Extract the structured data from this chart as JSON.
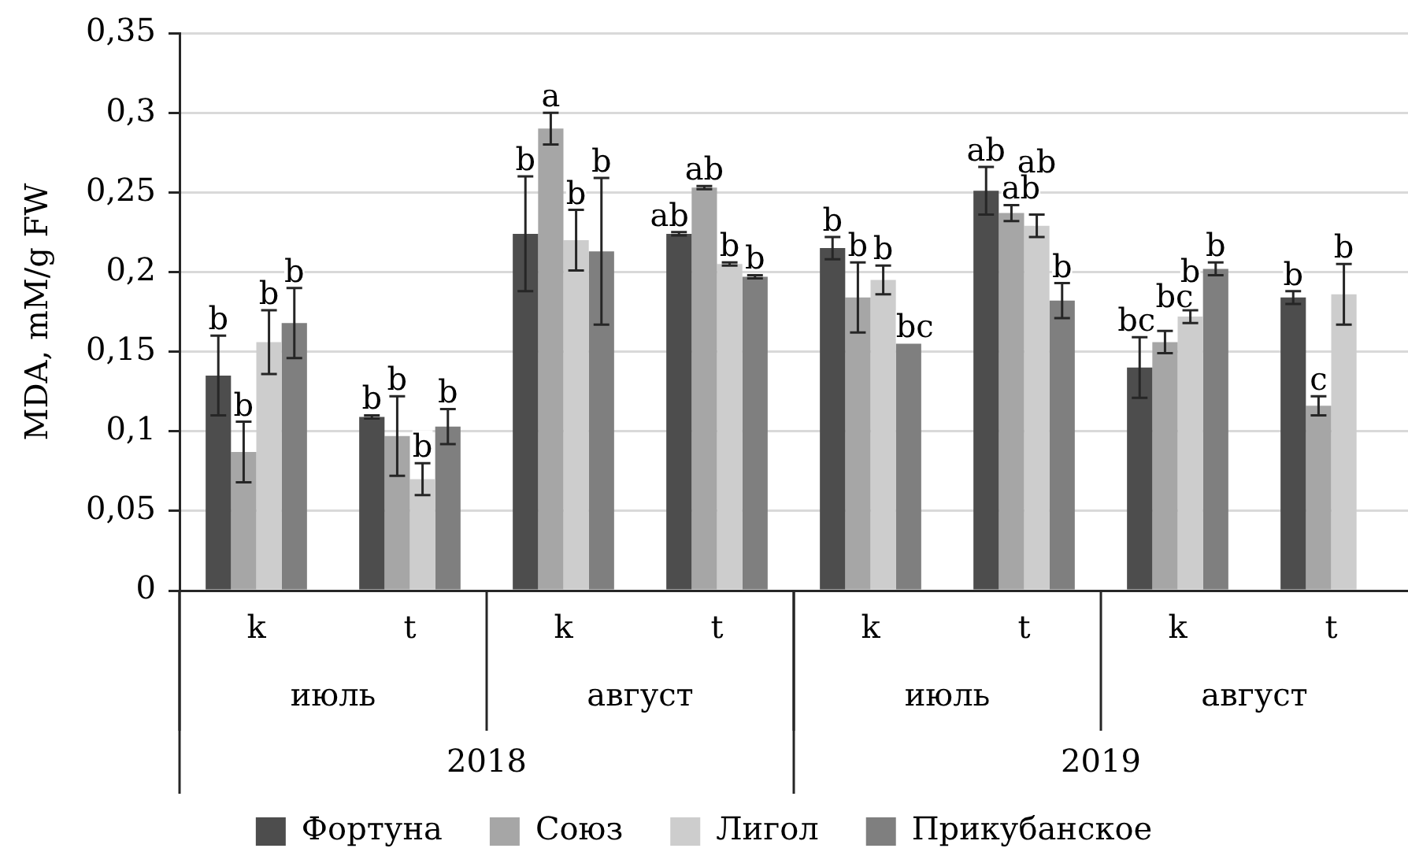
{
  "chart_data": {
    "type": "bar",
    "ylabel": "MDA, mM/g FW",
    "categories": [
      "k",
      "t",
      "k",
      "t",
      "k",
      "t",
      "k",
      "t"
    ],
    "annotations": [
      "июль",
      "август",
      "июль",
      "август",
      "2018",
      "2019"
    ],
    "series": [
      {
        "name": "Фортуна",
        "color": "#4d4d4d",
        "values": [
          0.135,
          0.109,
          0.224,
          0.224,
          0.215,
          0.251,
          0.14,
          0.184
        ],
        "errors": [
          0.025,
          0.001,
          0.036,
          0.001,
          0.007,
          0.015,
          0.019,
          0.004
        ],
        "value_labels": [
          "b",
          "b",
          "b",
          "ab",
          "b",
          "ab",
          "bc",
          "b"
        ]
      },
      {
        "name": "Союз",
        "color": "#a6a6a6",
        "values": [
          0.087,
          0.097,
          0.29,
          0.253,
          0.184,
          0.237,
          0.156,
          0.116
        ],
        "errors": [
          0.019,
          0.025,
          0.01,
          0.001,
          0.022,
          0.005,
          0.007,
          0.006
        ],
        "value_labels": [
          "b",
          "b",
          "a",
          "ab",
          "b",
          "ab",
          "bc",
          "c"
        ]
      },
      {
        "name": "Лигол",
        "color": "#cdcdcd",
        "values": [
          0.156,
          0.07,
          0.22,
          0.205,
          0.195,
          0.229,
          0.172,
          0.186
        ],
        "errors": [
          0.02,
          0.01,
          0.019,
          0.001,
          0.009,
          0.007,
          0.004,
          0.019
        ],
        "value_labels": [
          "b",
          "b",
          "b",
          "b",
          "b",
          "ab",
          "b",
          "b"
        ]
      },
      {
        "name": "Прикубанское",
        "color": "#7f7f7f",
        "values": [
          0.168,
          0.103,
          0.213,
          0.197,
          0.155,
          0.182,
          0.202,
          null
        ],
        "errors": [
          0.022,
          0.011,
          0.046,
          0.001,
          null,
          0.011,
          0.004,
          null
        ],
        "value_labels": [
          "b",
          "b",
          "b",
          "b",
          "bc",
          "b",
          "b",
          null
        ]
      }
    ],
    "ylim": [
      0,
      0.35
    ],
    "yticks": [
      0,
      {
        "value": 0.05,
        "label": "0,05"
      },
      {
        "value": 0.1,
        "label": "0,1"
      },
      {
        "value": 0.15,
        "label": "0,15"
      },
      {
        "value": 0.2,
        "label": "0,2"
      },
      {
        "value": 0.25,
        "label": "0,25"
      },
      {
        "value": 0.3,
        "label": "0,3"
      },
      {
        "value": 0.35,
        "label": "0,35"
      }
    ],
    "grid": "y",
    "legend": "bottom"
  }
}
